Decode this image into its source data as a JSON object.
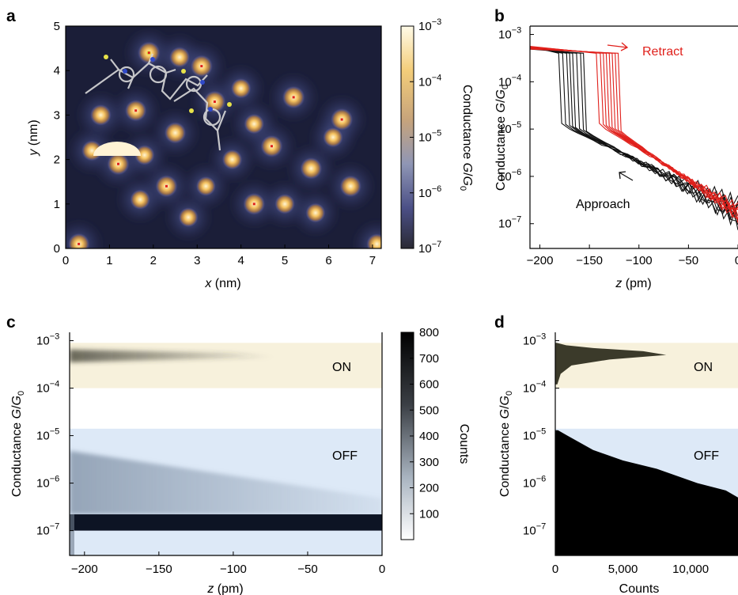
{
  "panels": {
    "a": {
      "label": "a",
      "xlabel_var": "x",
      "xlabel_unit": " (nm)",
      "ylabel_var": "y",
      "ylabel_unit": " (nm)",
      "xticks": [
        "0",
        "1",
        "2",
        "3",
        "4",
        "5",
        "6",
        "7"
      ],
      "yticks": [
        "0",
        "1",
        "2",
        "3",
        "4",
        "5"
      ],
      "colorbar_label_prefix": "Conductance ",
      "colorbar_label_var": "G",
      "colorbar_label_sep": "/",
      "colorbar_label_g0": "G",
      "colorbar_label_sub": "0",
      "colorbar_ticks": [
        {
          "base": "10",
          "exp": "−3"
        },
        {
          "base": "10",
          "exp": "−4"
        },
        {
          "base": "10",
          "exp": "−5"
        },
        {
          "base": "10",
          "exp": "−6"
        },
        {
          "base": "10",
          "exp": "−7"
        }
      ]
    },
    "b": {
      "label": "b",
      "retract_label": "Retract",
      "approach_label": "Approach",
      "xlabel_var": "z",
      "xlabel_unit": " (pm)",
      "xticks": [
        "−200",
        "−150",
        "−100",
        "−50",
        "0"
      ],
      "ylabel_prefix": "Conductance ",
      "ylabel_var": "G",
      "ylabel_sub": "0",
      "yticks": [
        {
          "base": "10",
          "exp": "−3"
        },
        {
          "base": "10",
          "exp": "−4"
        },
        {
          "base": "10",
          "exp": "−5"
        },
        {
          "base": "10",
          "exp": "−6"
        },
        {
          "base": "10",
          "exp": "−7"
        }
      ]
    },
    "c": {
      "label": "c",
      "on_label": "ON",
      "off_label": "OFF",
      "xlabel_var": "z",
      "xlabel_unit": " (pm)",
      "xticks": [
        "−200",
        "−150",
        "−100",
        "−50",
        "0"
      ],
      "ylabel_prefix": "Conductance ",
      "ylabel_var": "G",
      "ylabel_sub": "0",
      "yticks": [
        {
          "base": "10",
          "exp": "−3"
        },
        {
          "base": "10",
          "exp": "−4"
        },
        {
          "base": "10",
          "exp": "−5"
        },
        {
          "base": "10",
          "exp": "−6"
        },
        {
          "base": "10",
          "exp": "−7"
        }
      ],
      "colorbar_label": "Counts",
      "colorbar_ticks": [
        "800",
        "700",
        "600",
        "500",
        "400",
        "300",
        "200",
        "100"
      ]
    },
    "d": {
      "label": "d",
      "on_label": "ON",
      "off_label": "OFF",
      "xlabel": "Counts",
      "xticks": [
        "0",
        "5,000",
        "10,000"
      ],
      "ylabel_prefix": "Conductance ",
      "ylabel_var": "G",
      "ylabel_sub": "0",
      "yticks": [
        {
          "base": "10",
          "exp": "−3"
        },
        {
          "base": "10",
          "exp": "−4"
        },
        {
          "base": "10",
          "exp": "−5"
        },
        {
          "base": "10",
          "exp": "−6"
        },
        {
          "base": "10",
          "exp": "−7"
        }
      ]
    }
  },
  "colors": {
    "retract": "#e0201b",
    "approach": "#111111",
    "on_band": "#f7f1dc",
    "off_band": "#dde9f7",
    "map_background": "#1b1e38",
    "hist_on": "#3b3a2a"
  },
  "chart_data": [
    {
      "panel": "a",
      "type": "heatmap",
      "xlabel": "x (nm)",
      "ylabel": "y (nm)",
      "xlim": [
        0,
        7.2
      ],
      "ylim": [
        0,
        5
      ],
      "color_scale": "log",
      "clim": [
        1e-07,
        0.001
      ],
      "colorbar_label": "Conductance G/G0",
      "spots": [
        {
          "x": 0.3,
          "y": 0.1,
          "g": 0.0005
        },
        {
          "x": 1.2,
          "y": 1.9,
          "g": 0.0008
        },
        {
          "x": 0.6,
          "y": 2.2,
          "g": 0.0003
        },
        {
          "x": 1.6,
          "y": 3.1,
          "g": 0.0005
        },
        {
          "x": 0.8,
          "y": 3.0,
          "g": 0.0004
        },
        {
          "x": 1.9,
          "y": 4.4,
          "g": 0.0009
        },
        {
          "x": 2.6,
          "y": 4.3,
          "g": 0.0003
        },
        {
          "x": 3.1,
          "y": 4.1,
          "g": 0.0008
        },
        {
          "x": 3.4,
          "y": 3.3,
          "g": 0.0007
        },
        {
          "x": 2.5,
          "y": 2.6,
          "g": 0.0005
        },
        {
          "x": 2.3,
          "y": 1.4,
          "g": 0.0007
        },
        {
          "x": 1.7,
          "y": 1.1,
          "g": 0.0002
        },
        {
          "x": 1.8,
          "y": 2.1,
          "g": 0.0002
        },
        {
          "x": 2.8,
          "y": 0.7,
          "g": 0.00015
        },
        {
          "x": 3.2,
          "y": 1.4,
          "g": 0.00015
        },
        {
          "x": 4.3,
          "y": 1.0,
          "g": 0.0006
        },
        {
          "x": 3.8,
          "y": 2.0,
          "g": 0.0002
        },
        {
          "x": 4.7,
          "y": 2.3,
          "g": 0.0007
        },
        {
          "x": 4.3,
          "y": 2.8,
          "g": 0.0002
        },
        {
          "x": 5.2,
          "y": 3.4,
          "g": 0.0009
        },
        {
          "x": 6.3,
          "y": 2.9,
          "g": 0.0008
        },
        {
          "x": 6.1,
          "y": 2.5,
          "g": 0.0002
        },
        {
          "x": 5.6,
          "y": 1.8,
          "g": 0.0006
        },
        {
          "x": 5.0,
          "y": 1.0,
          "g": 0.0002
        },
        {
          "x": 5.7,
          "y": 0.8,
          "g": 0.00015
        },
        {
          "x": 6.5,
          "y": 1.4,
          "g": 0.0005
        },
        {
          "x": 7.1,
          "y": 0.1,
          "g": 0.0003
        },
        {
          "x": 4.0,
          "y": 3.6,
          "g": 0.0002
        }
      ],
      "markers": [
        {
          "x": 1.2,
          "y": 1.9
        },
        {
          "x": 1.6,
          "y": 3.1
        },
        {
          "x": 2.3,
          "y": 1.4
        },
        {
          "x": 4.3,
          "y": 1.0
        },
        {
          "x": 4.7,
          "y": 2.3
        },
        {
          "x": 5.2,
          "y": 3.4
        },
        {
          "x": 6.3,
          "y": 2.9
        },
        {
          "x": 3.4,
          "y": 3.3
        },
        {
          "x": 3.1,
          "y": 4.1
        },
        {
          "x": 1.9,
          "y": 4.4
        },
        {
          "x": 0.3,
          "y": 0.1
        }
      ]
    },
    {
      "panel": "b",
      "type": "line",
      "xlabel": "z (pm)",
      "ylabel": "Conductance G/G0",
      "xlim": [
        -210,
        0
      ],
      "ylim": [
        3e-08,
        0.0015
      ],
      "yscale": "log",
      "approach_jumps_z": [
        -178,
        -174,
        -170,
        -167,
        -164,
        -160,
        -156,
        -153
      ],
      "retract_jumps_z": [
        -140,
        -136,
        -133,
        -130,
        -127,
        -124,
        -121,
        -118
      ],
      "plateau_G": 0.0005,
      "tunneling_G_at_jump": 1.2e-05,
      "tunneling_G_at_0": 2e-07
    },
    {
      "panel": "c",
      "type": "heatmap",
      "xlabel": "z (pm)",
      "ylabel": "Conductance G/G0",
      "xlim": [
        -210,
        0
      ],
      "ylim": [
        3e-08,
        0.0015
      ],
      "yscale": "log",
      "colorbar_label": "Counts",
      "clim": [
        0,
        800
      ],
      "on_band": [
        0.0001,
        0.0009
      ],
      "off_band": [
        3e-08,
        1.4e-05
      ],
      "features": [
        {
          "name": "noise floor",
          "G": 1.5e-07,
          "counts": 800
        },
        {
          "name": "plateau",
          "G": 0.0005,
          "counts": 300
        },
        {
          "name": "tunneling decay",
          "G_start": 3e-06,
          "G_end": 4e-07,
          "counts": 200
        }
      ]
    },
    {
      "panel": "d",
      "type": "bar",
      "orientation": "horizontal",
      "xlabel": "Counts",
      "ylabel": "Conductance G/G0",
      "xlim": [
        0,
        13500
      ],
      "ylim": [
        3e-08,
        0.0015
      ],
      "yscale": "log",
      "on_band": [
        0.0001,
        0.0009
      ],
      "off_band": [
        3e-08,
        1.4e-05
      ],
      "on_histogram": [
        {
          "G": 0.0009,
          "counts": 100
        },
        {
          "G": 0.0008,
          "counts": 800
        },
        {
          "G": 0.0007,
          "counts": 2800
        },
        {
          "G": 0.0006,
          "counts": 6500
        },
        {
          "G": 0.0005,
          "counts": 8200
        },
        {
          "G": 0.0004,
          "counts": 4000
        },
        {
          "G": 0.0003,
          "counts": 1200
        },
        {
          "G": 0.0002,
          "counts": 400
        },
        {
          "G": 0.00012,
          "counts": 150
        }
      ],
      "off_histogram": [
        {
          "G": 1.3e-05,
          "counts": 200
        },
        {
          "G": 1e-05,
          "counts": 900
        },
        {
          "G": 5e-06,
          "counts": 2800
        },
        {
          "G": 3e-06,
          "counts": 5000
        },
        {
          "G": 2e-06,
          "counts": 7500
        },
        {
          "G": 1e-06,
          "counts": 10500
        },
        {
          "G": 7e-07,
          "counts": 12600
        },
        {
          "G": 5e-07,
          "counts": 13500
        },
        {
          "G": 3e-08,
          "counts": 13500
        }
      ]
    }
  ]
}
